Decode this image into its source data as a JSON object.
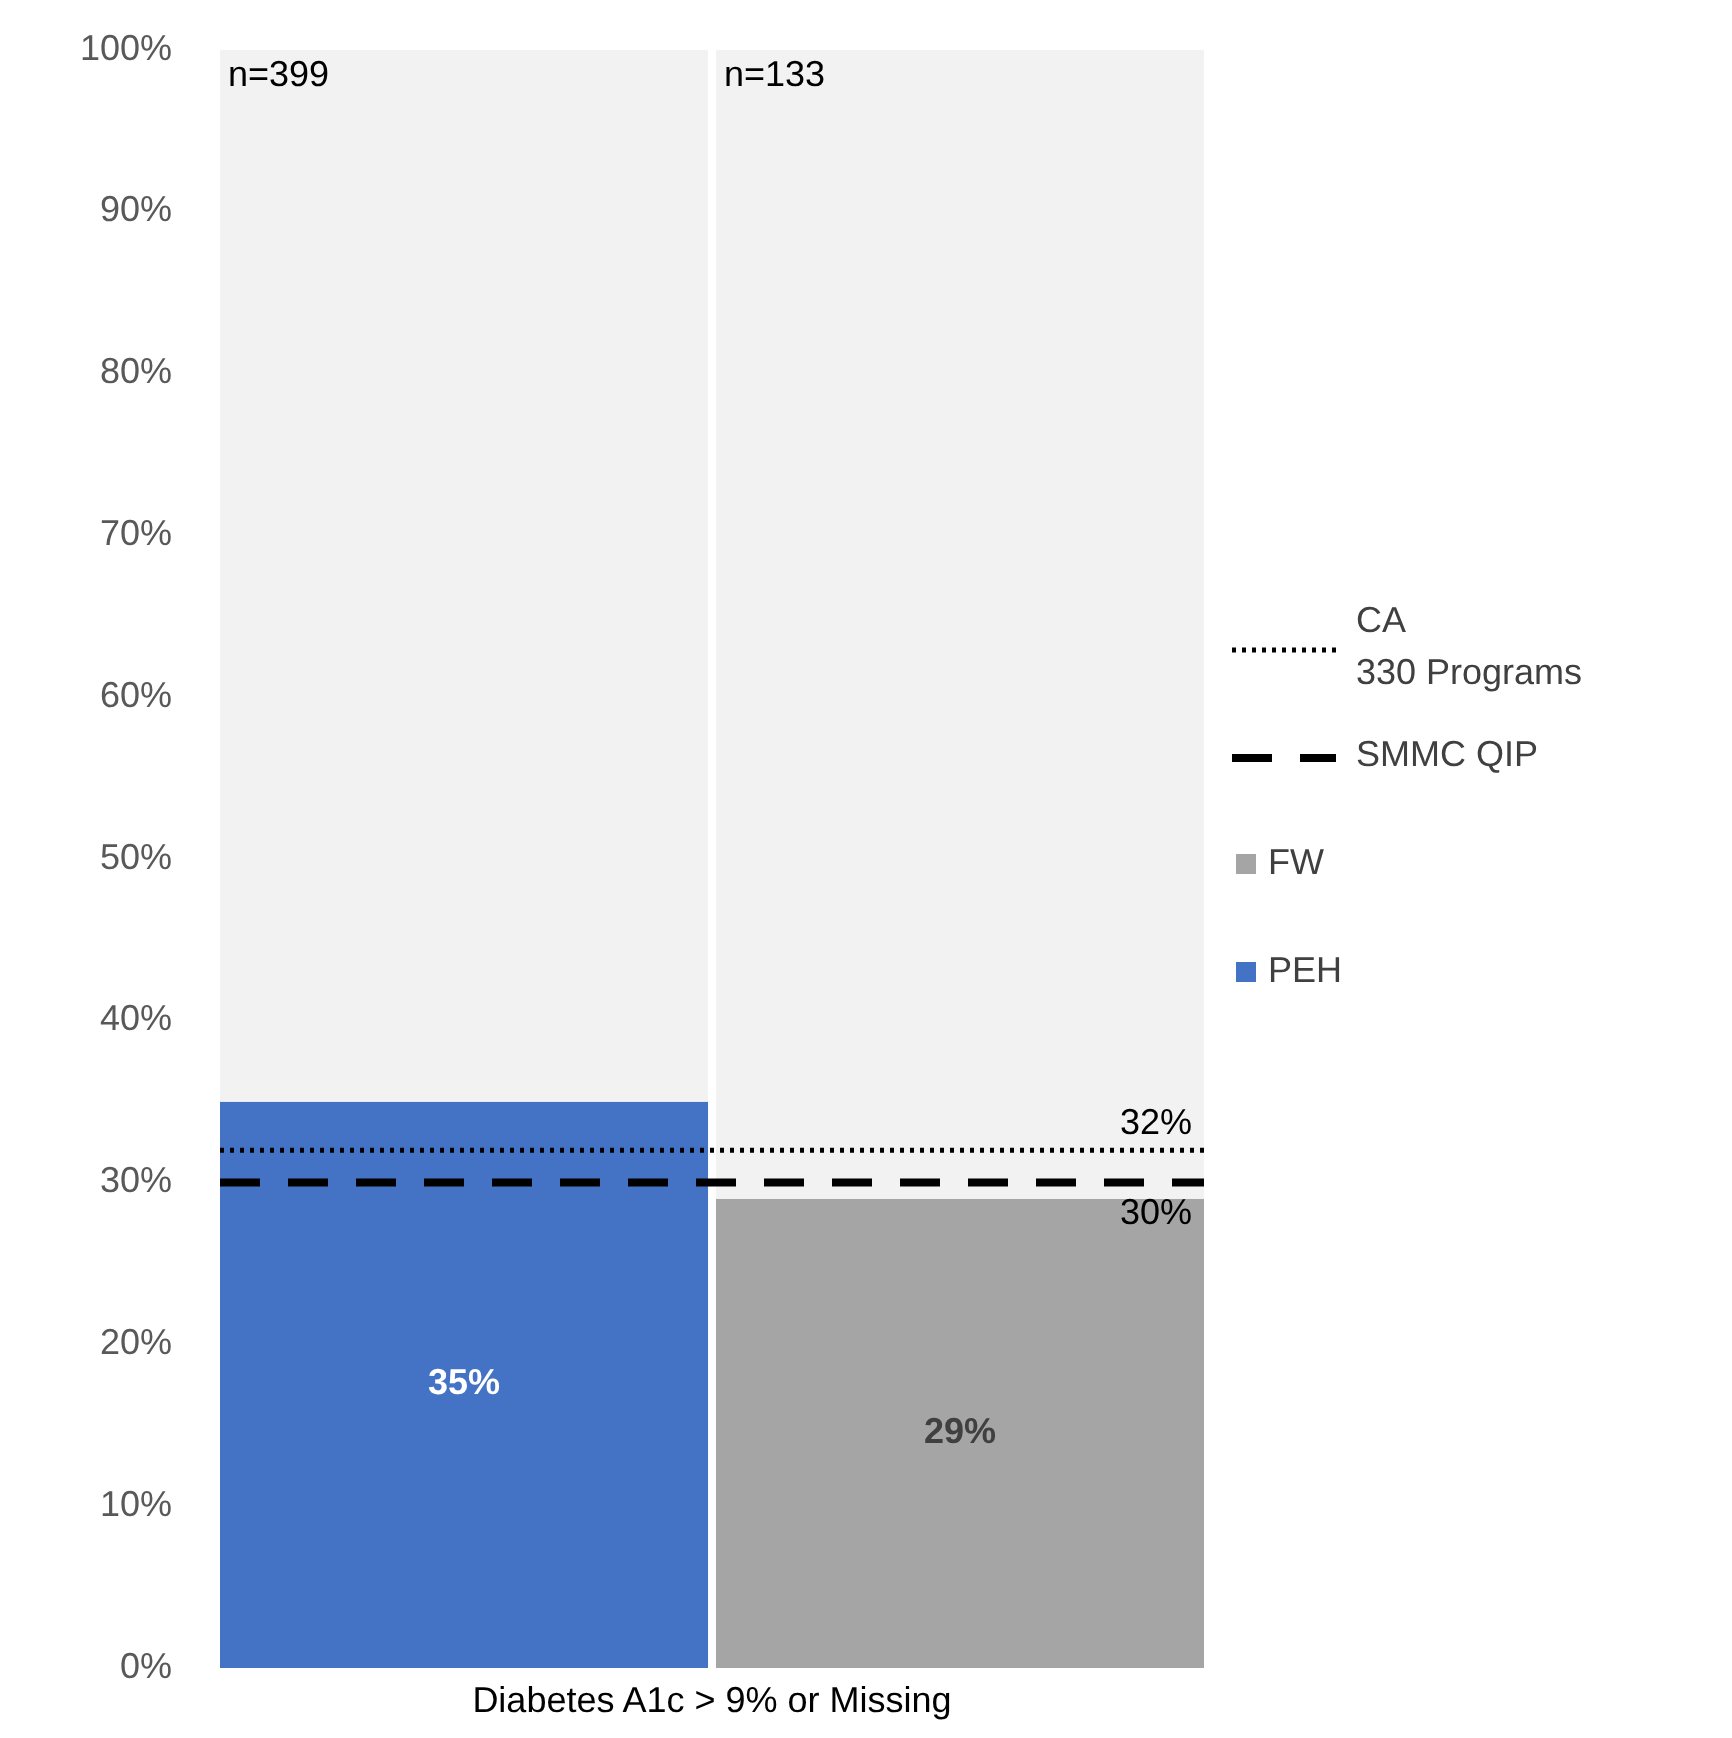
{
  "chart_data": {
    "type": "bar",
    "stacked": true,
    "xlabel": "Diabetes A1c > 9% or Missing",
    "categories": [
      null,
      null
    ],
    "series": [
      {
        "name": "PEH",
        "color": "#4472c4",
        "values": [
          35,
          null
        ],
        "value_labels": [
          "35%",
          null
        ]
      },
      {
        "name": "FW",
        "color": "#a5a5a5",
        "values": [
          null,
          29
        ],
        "value_labels": [
          null,
          "29%"
        ]
      },
      {
        "color": "#f2f2f2",
        "values": [
          65,
          71
        ]
      }
    ],
    "ylim": [
      0,
      100
    ],
    "yticks": [
      {
        "value": 0,
        "label": "0%"
      },
      {
        "value": 10,
        "label": "10%"
      },
      {
        "value": 20,
        "label": "20%"
      },
      {
        "value": 30,
        "label": "30%"
      },
      {
        "value": 40,
        "label": "40%"
      },
      {
        "value": 50,
        "label": "50%"
      },
      {
        "value": 60,
        "label": "60%"
      },
      {
        "value": 70,
        "label": "70%"
      },
      {
        "value": 80,
        "label": "80%"
      },
      {
        "value": 90,
        "label": "90%"
      },
      {
        "value": 100,
        "label": "100%"
      }
    ],
    "ref_lines": [
      {
        "axis": "y",
        "value": 32,
        "label": "CA 330 Programs",
        "color": "#000000",
        "line_style": "dotted"
      },
      {
        "axis": "y",
        "value": 30,
        "label": "SMMC QIP",
        "color": "#000000",
        "line_style": "dashed"
      }
    ],
    "annotations": [
      "n=399",
      "n=133",
      {
        "text": "32%",
        "y": 32
      },
      {
        "text": "30%",
        "y": 30
      }
    ],
    "legend": "right",
    "grid": false
  }
}
